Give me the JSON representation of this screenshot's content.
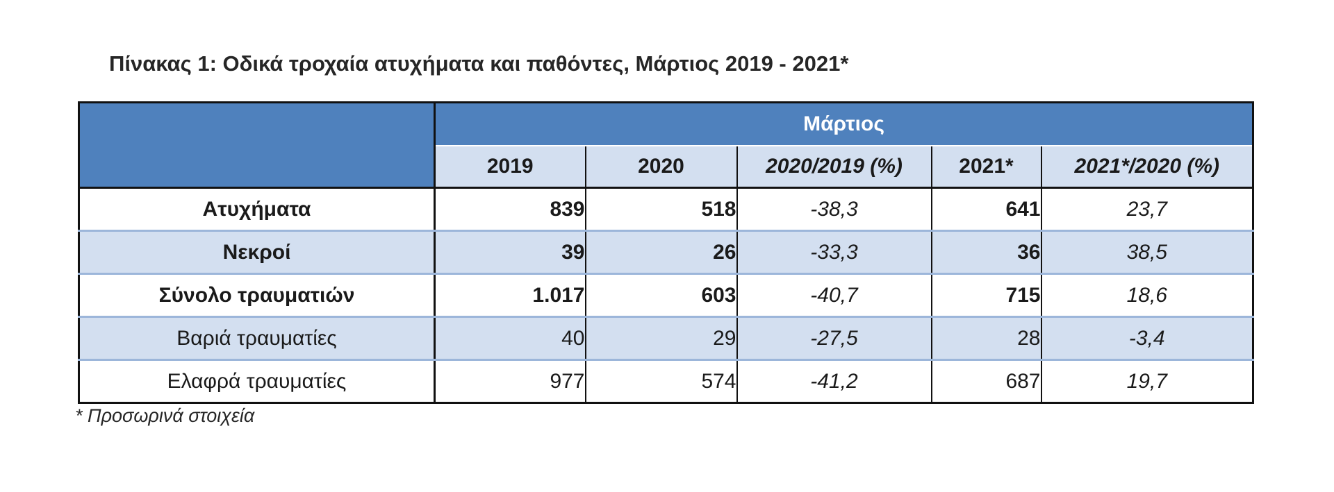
{
  "title": "Πίνακας 1: Οδικά τροχαία ατυχήματα και παθόντες, Μάρτιος 2019 - 2021*",
  "group_header": "Μάρτιος",
  "columns": [
    "2019",
    "2020",
    "2020/2019 (%)",
    "2021*",
    "2021*/2020 (%)"
  ],
  "rows": [
    {
      "label": "Ατυχήματα",
      "v2019": "839",
      "v2020": "518",
      "p2020": "-38,3",
      "v2021": "641",
      "p2021": "23,7"
    },
    {
      "label": "Νεκροί",
      "v2019": "39",
      "v2020": "26",
      "p2020": "-33,3",
      "v2021": "36",
      "p2021": "38,5"
    },
    {
      "label": "Σύνολο τραυματιών",
      "v2019": "1.017",
      "v2020": "603",
      "p2020": "-40,7",
      "v2021": "715",
      "p2021": "18,6"
    },
    {
      "label": "Βαριά τραυματίες",
      "v2019": "40",
      "v2020": "29",
      "p2020": "-27,5",
      "v2021": "28",
      "p2021": "-3,4"
    },
    {
      "label": "Ελαφρά τραυματίες",
      "v2019": "977",
      "v2020": "574",
      "p2020": "-41,2",
      "v2021": "687",
      "p2021": "19,7"
    }
  ],
  "footnote": "* Προσωρινά στοιχεία",
  "colors": {
    "header_blue": "#4f81bd",
    "row_shade": "#d3dff0"
  }
}
